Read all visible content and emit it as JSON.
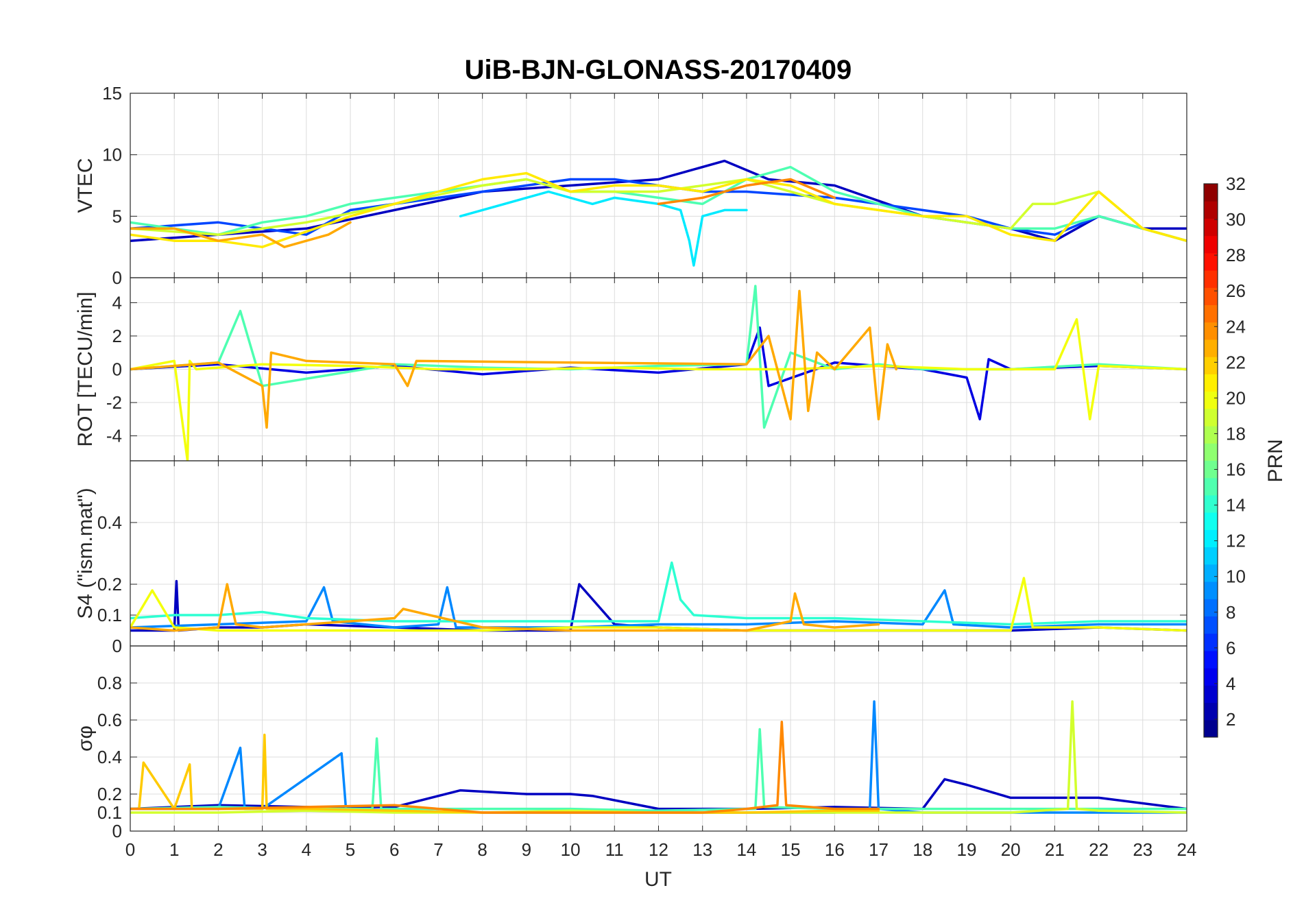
{
  "chart_data": {
    "type": "line",
    "title": "UiB-BJN-GLONASS-20170409",
    "xlabel": "UT",
    "xlim": [
      0,
      24
    ],
    "xticks": [
      "0",
      "1",
      "2",
      "3",
      "4",
      "5",
      "6",
      "7",
      "8",
      "9",
      "10",
      "11",
      "12",
      "13",
      "14",
      "15",
      "16",
      "17",
      "18",
      "19",
      "20",
      "21",
      "22",
      "23",
      "24"
    ],
    "colorbar": {
      "label": "PRN",
      "range": [
        1,
        32
      ],
      "ticks": [
        "2",
        "4",
        "6",
        "8",
        "10",
        "12",
        "14",
        "16",
        "18",
        "20",
        "22",
        "24",
        "26",
        "28",
        "30",
        "32"
      ],
      "colormap": "jet"
    },
    "panels": [
      {
        "ylabel": "VTEC",
        "ylim": [
          0,
          15
        ],
        "yticks": [
          "0",
          "5",
          "10",
          "15"
        ],
        "series": [
          {
            "prn": 3,
            "x": [
              0,
              2,
              4,
              6,
              8,
              10,
              12,
              13.5,
              14.5,
              16,
              18,
              20,
              21,
              22,
              23,
              24
            ],
            "y": [
              3,
              3.5,
              4,
              5.5,
              7,
              7.5,
              8,
              9.5,
              8,
              7.5,
              5,
              4,
              3,
              5,
              4,
              4
            ]
          },
          {
            "prn": 7,
            "x": [
              0,
              2,
              4,
              5,
              6,
              8,
              10,
              11,
              12,
              13,
              14,
              16,
              18,
              19,
              20,
              21,
              22,
              23,
              24
            ],
            "y": [
              4,
              4.5,
              3.5,
              5.5,
              6,
              7,
              8,
              8,
              7.5,
              7,
              7,
              6.5,
              5.5,
              5,
              4,
              3.5,
              5,
              4,
              3
            ]
          },
          {
            "prn": 12,
            "x": [
              7.5,
              8.5,
              9.5,
              10.5,
              11,
              12,
              12.5,
              12.7,
              12.8,
              13,
              13.5,
              14
            ],
            "y": [
              5,
              6,
              7,
              6,
              6.5,
              6,
              5.5,
              3,
              1,
              5,
              5.5,
              5.5
            ]
          },
          {
            "prn": 15,
            "x": [
              0,
              1,
              2,
              3,
              4,
              5,
              6,
              7,
              8,
              9,
              10,
              11,
              12,
              13,
              14,
              15,
              16,
              17,
              18,
              19,
              20,
              21,
              22,
              23,
              24
            ],
            "y": [
              4.5,
              4,
              3.5,
              4.5,
              5,
              6,
              6.5,
              7,
              7.5,
              8,
              7,
              7,
              6.5,
              6,
              8,
              9,
              7,
              6,
              5,
              4.5,
              4,
              4,
              5,
              4,
              3
            ]
          },
          {
            "prn": 19,
            "x": [
              0,
              2,
              4,
              6,
              8,
              9,
              10,
              12,
              14,
              16,
              18,
              20,
              20.5,
              21,
              22,
              23,
              24
            ],
            "y": [
              4,
              3.5,
              4.5,
              6,
              7.5,
              8,
              7,
              7,
              8,
              6,
              5,
              4,
              6,
              6,
              7,
              4,
              3
            ]
          },
          {
            "prn": 21,
            "x": [
              0,
              1,
              2,
              3,
              5,
              6,
              8,
              9,
              10,
              11,
              12,
              13,
              14,
              15,
              16,
              17,
              18,
              19,
              20,
              21,
              22,
              23,
              24
            ],
            "y": [
              3.5,
              3,
              3,
              2.5,
              5,
              6,
              8,
              8.5,
              7,
              7.5,
              7.5,
              7,
              8,
              7.5,
              6,
              5.5,
              5,
              5,
              3.5,
              3,
              7,
              4,
              3
            ]
          },
          {
            "prn": 23,
            "x": [
              0,
              1,
              2,
              3,
              3.5,
              4,
              4.5,
              5
            ],
            "y": [
              4,
              4,
              3,
              3.5,
              2.5,
              3,
              3.5,
              4.5
            ]
          },
          {
            "prn": 24,
            "x": [
              12,
              13,
              14,
              15,
              16
            ],
            "y": [
              6,
              6.5,
              7.5,
              8,
              6.5
            ]
          }
        ]
      },
      {
        "ylabel": "ROT [TECU/min]",
        "ylim": [
          -5.5,
          5.5
        ],
        "yticks": [
          "-4",
          "-2",
          "0",
          "2",
          "4"
        ],
        "series": [
          {
            "prn": 4,
            "x": [
              0,
              2,
              4,
              6,
              8,
              10,
              12,
              14,
              14.3,
              14.5,
              16,
              18,
              19,
              19.3,
              19.5,
              20,
              22,
              24
            ],
            "y": [
              0,
              0.3,
              -0.2,
              0.2,
              -0.3,
              0.1,
              -0.2,
              0.3,
              2.5,
              -1,
              0.4,
              0,
              -0.5,
              -3,
              0.6,
              0,
              0.2,
              0
            ]
          },
          {
            "prn": 15,
            "x": [
              0,
              2,
              2.5,
              3,
              6,
              8,
              10,
              12,
              14,
              14.2,
              14.4,
              15,
              16,
              17,
              18,
              20,
              22,
              24
            ],
            "y": [
              0,
              0.4,
              3.5,
              -1,
              0.3,
              0.1,
              0,
              0.2,
              0.3,
              5,
              -3.5,
              1,
              0,
              0.3,
              0,
              0,
              0.3,
              0
            ]
          },
          {
            "prn": 20,
            "x": [
              0,
              1,
              1.3,
              1.35,
              1.5,
              3,
              5,
              7,
              9,
              11,
              13,
              15,
              17,
              19,
              21,
              21.5,
              21.8,
              22,
              24
            ],
            "y": [
              0,
              0.5,
              -5.5,
              0.5,
              0,
              0.3,
              0.2,
              0,
              0,
              0.1,
              0,
              0,
              0.2,
              0,
              0,
              3,
              -3,
              0.2,
              0
            ]
          },
          {
            "prn": 23,
            "x": [
              0,
              1,
              2,
              3,
              3.1,
              3.2,
              4,
              6,
              6.3,
              6.5,
              14,
              14.5,
              15,
              15.2,
              15.4,
              15.6,
              16,
              16.8,
              17,
              17.2,
              17.4
            ],
            "y": [
              0,
              0.2,
              0.4,
              -1,
              -3.5,
              1,
              0.5,
              0.3,
              -1,
              0.5,
              0.3,
              2,
              -3,
              4.7,
              -2.5,
              1,
              0,
              2.5,
              -3,
              1.5,
              0
            ]
          }
        ]
      },
      {
        "ylabel": "S4 (\"ism.mat\")",
        "ylim": [
          0,
          0.6
        ],
        "yticks": [
          "0",
          "0.1",
          "0.2",
          "0.4"
        ],
        "series": [
          {
            "prn": 3,
            "x": [
              0,
              1,
              1.05,
              1.1,
              2,
              3,
              4,
              6,
              8,
              9,
              9.5,
              10,
              10.2,
              11,
              12,
              14,
              16,
              18,
              20,
              22,
              24
            ],
            "y": [
              0.05,
              0.05,
              0.21,
              0.05,
              0.06,
              0.06,
              0.07,
              0.06,
              0.05,
              0.05,
              0.05,
              0.05,
              0.2,
              0.07,
              0.06,
              0.05,
              0.05,
              0.05,
              0.05,
              0.06,
              0.05
            ]
          },
          {
            "prn": 9,
            "x": [
              0,
              2,
              4,
              4.4,
              4.6,
              6,
              7,
              7.2,
              7.4,
              9,
              10,
              12,
              14,
              16,
              18,
              18.5,
              18.7,
              20,
              22,
              24
            ],
            "y": [
              0.06,
              0.07,
              0.08,
              0.19,
              0.08,
              0.06,
              0.07,
              0.19,
              0.06,
              0.06,
              0.06,
              0.07,
              0.07,
              0.08,
              0.07,
              0.18,
              0.07,
              0.06,
              0.07,
              0.07
            ]
          },
          {
            "prn": 14,
            "x": [
              0,
              1,
              2,
              3,
              4,
              6,
              8,
              10,
              12,
              12.3,
              12.5,
              12.8,
              14,
              16,
              18,
              20,
              22,
              24
            ],
            "y": [
              0.09,
              0.1,
              0.1,
              0.11,
              0.09,
              0.08,
              0.08,
              0.08,
              0.08,
              0.27,
              0.15,
              0.1,
              0.09,
              0.09,
              0.08,
              0.07,
              0.08,
              0.08
            ]
          },
          {
            "prn": 20,
            "x": [
              0,
              0.5,
              1,
              2,
              4,
              6,
              8,
              10,
              12,
              14,
              16,
              18,
              20,
              20.3,
              20.5,
              22,
              24
            ],
            "y": [
              0.06,
              0.18,
              0.06,
              0.05,
              0.05,
              0.05,
              0.05,
              0.06,
              0.06,
              0.05,
              0.05,
              0.05,
              0.05,
              0.22,
              0.06,
              0.06,
              0.05
            ]
          },
          {
            "prn": 23,
            "x": [
              0,
              1,
              2,
              2.2,
              2.4,
              3,
              4,
              5,
              6,
              6.2,
              8,
              10,
              12,
              14,
              15,
              15.1,
              15.3,
              16,
              17
            ],
            "y": [
              0.06,
              0.05,
              0.06,
              0.2,
              0.07,
              0.06,
              0.07,
              0.08,
              0.09,
              0.12,
              0.06,
              0.05,
              0.05,
              0.05,
              0.08,
              0.17,
              0.07,
              0.06,
              0.07
            ]
          }
        ]
      },
      {
        "ylabel": "σφ",
        "ylim": [
          0,
          1
        ],
        "yticks": [
          "0",
          "0.1",
          "0.2",
          "0.4",
          "0.6",
          "0.8"
        ],
        "series": [
          {
            "prn": 3,
            "x": [
              0,
              2,
              4,
              6,
              7.5,
              9,
              10,
              10.5,
              12,
              14,
              16,
              18,
              18.5,
              19,
              20,
              22,
              24
            ],
            "y": [
              0.12,
              0.14,
              0.13,
              0.13,
              0.22,
              0.2,
              0.2,
              0.19,
              0.12,
              0.12,
              0.13,
              0.12,
              0.28,
              0.25,
              0.18,
              0.18,
              0.12
            ]
          },
          {
            "prn": 9,
            "x": [
              0,
              2,
              2.5,
              2.6,
              3,
              4.8,
              4.9,
              5,
              6,
              8,
              10,
              12,
              14,
              16,
              16.8,
              16.9,
              17,
              18,
              20,
              22,
              24
            ],
            "y": [
              0.12,
              0.12,
              0.45,
              0.12,
              0.12,
              0.42,
              0.12,
              0.12,
              0.11,
              0.1,
              0.1,
              0.1,
              0.1,
              0.1,
              0.12,
              0.7,
              0.12,
              0.1,
              0.1,
              0.1,
              0.1
            ]
          },
          {
            "prn": 15,
            "x": [
              0,
              2,
              4,
              5.5,
              5.6,
              5.7,
              8,
              10,
              12,
              14,
              14.2,
              14.3,
              14.4,
              16,
              18,
              20,
              22,
              24
            ],
            "y": [
              0.12,
              0.13,
              0.12,
              0.12,
              0.5,
              0.12,
              0.12,
              0.12,
              0.11,
              0.12,
              0.12,
              0.55,
              0.13,
              0.12,
              0.12,
              0.12,
              0.12,
              0.12
            ]
          },
          {
            "prn": 19,
            "x": [
              0,
              2,
              4,
              6,
              8,
              10,
              12,
              14,
              16,
              18,
              20,
              21.3,
              21.4,
              21.5,
              22,
              24
            ],
            "y": [
              0.1,
              0.1,
              0.11,
              0.1,
              0.1,
              0.11,
              0.1,
              0.1,
              0.1,
              0.1,
              0.1,
              0.12,
              0.7,
              0.12,
              0.11,
              0.1
            ]
          },
          {
            "prn": 22,
            "x": [
              0,
              0.2,
              0.3,
              1,
              1.35,
              1.4,
              2,
              3,
              3.05,
              3.1,
              4,
              6,
              8,
              10,
              12,
              14,
              16,
              17
            ],
            "y": [
              0.12,
              0.12,
              0.37,
              0.12,
              0.36,
              0.12,
              0.12,
              0.12,
              0.52,
              0.12,
              0.12,
              0.11,
              0.1,
              0.1,
              0.1,
              0.1,
              0.11,
              0.11
            ]
          },
          {
            "prn": 24,
            "x": [
              0,
              2,
              4,
              6,
              8,
              10,
              12,
              13,
              14,
              14.7,
              14.8,
              14.9,
              16,
              17
            ],
            "y": [
              0.12,
              0.12,
              0.13,
              0.14,
              0.1,
              0.1,
              0.1,
              0.1,
              0.12,
              0.14,
              0.59,
              0.14,
              0.12,
              0.12
            ]
          }
        ]
      }
    ]
  }
}
